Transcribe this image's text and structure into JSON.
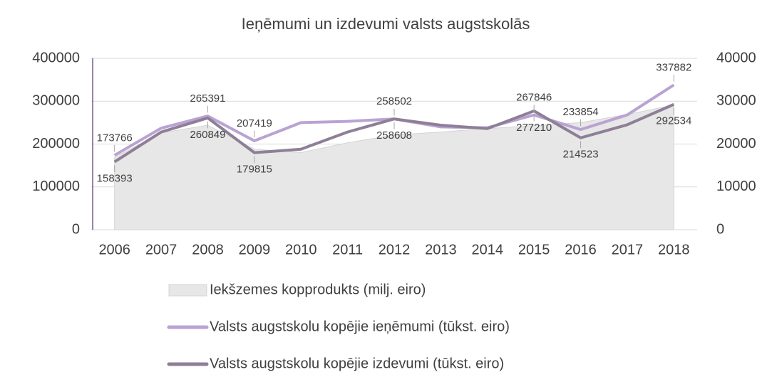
{
  "chart_data": {
    "type": "line",
    "title": "Ieņēmumi un izdevumi valsts augstskolās",
    "categories": [
      "2006",
      "2007",
      "2008",
      "2009",
      "2010",
      "2011",
      "2012",
      "2013",
      "2014",
      "2015",
      "2016",
      "2017",
      "2018"
    ],
    "ylim": [
      0,
      400000
    ],
    "yticks": [
      0,
      100000,
      200000,
      300000,
      400000
    ],
    "y2lim": [
      0,
      40000
    ],
    "y2ticks": [
      0,
      10000,
      20000,
      30000,
      40000
    ],
    "grid": true,
    "legend": "bottom",
    "series": [
      {
        "name": "Iekšzemes kopprodukts (milj. eiro)",
        "type": "area",
        "axis": "y2",
        "color": "#e7e7e7",
        "values": [
          16900,
          22600,
          24400,
          18800,
          18000,
          20300,
          22100,
          22800,
          23600,
          24300,
          25000,
          26900,
          29100
        ]
      },
      {
        "name": "Valsts augstskolu kopējie ieņēmumi (tūkst. eiro)",
        "type": "line",
        "color": "#b9a3d3",
        "values": [
          173766,
          237000,
          265391,
          207419,
          250000,
          253000,
          258502,
          240000,
          238000,
          267846,
          233854,
          268000,
          337882
        ],
        "value_labels": [
          "173766",
          null,
          "265391",
          "207419",
          null,
          null,
          "258502",
          null,
          null,
          "267846",
          "233854",
          null,
          "337882"
        ]
      },
      {
        "name": "Valsts augstskolu kopējie izdevumi (tūkst. eiro)",
        "type": "line",
        "color": "#8e7f97",
        "values": [
          158393,
          228000,
          260849,
          179815,
          188000,
          228000,
          258608,
          244000,
          236000,
          277210,
          214523,
          245000,
          292534
        ],
        "value_labels": [
          "158393",
          null,
          "260849",
          "179815",
          null,
          null,
          "258608",
          null,
          null,
          "277210",
          "214523",
          null,
          "292534"
        ]
      }
    ]
  }
}
